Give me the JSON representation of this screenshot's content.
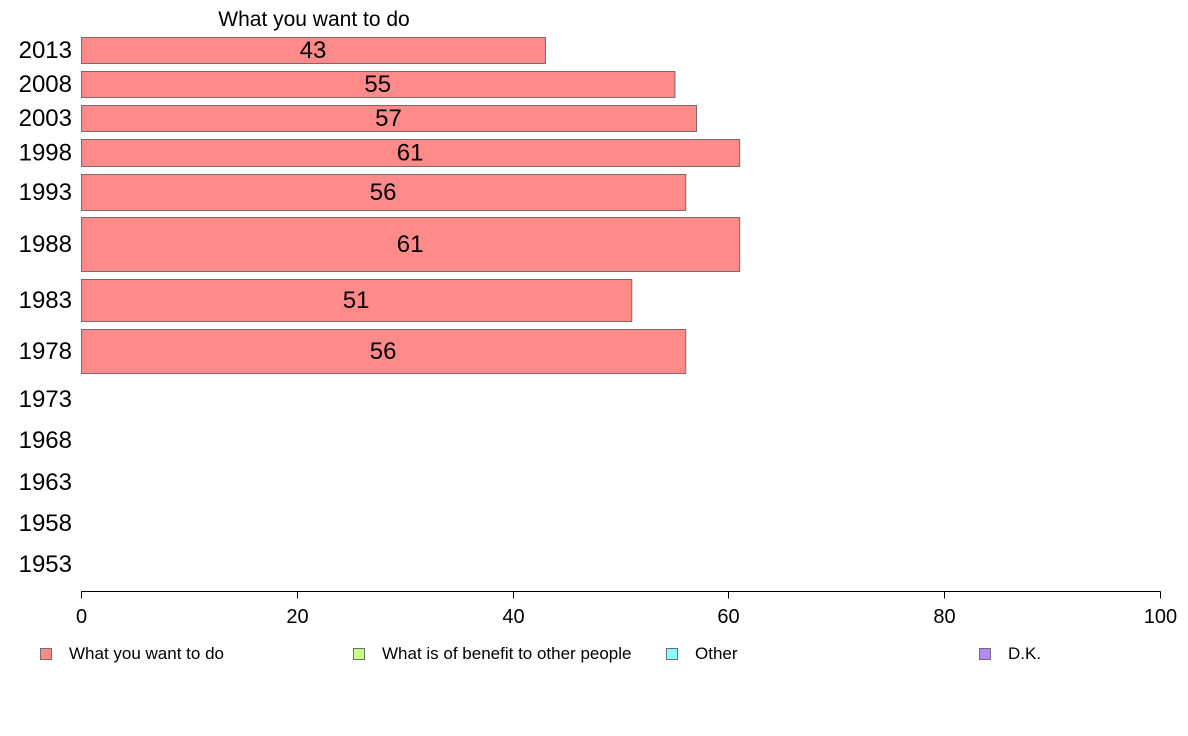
{
  "chart_data": {
    "type": "bar",
    "orientation": "horizontal",
    "title": "What you want to do",
    "categories": [
      "2013",
      "2008",
      "2003",
      "1998",
      "1993",
      "1988",
      "1983",
      "1978",
      "1973",
      "1968",
      "1963",
      "1958",
      "1953"
    ],
    "series": [
      {
        "name": "What you want to do",
        "values": [
          43,
          55,
          57,
          61,
          56,
          61,
          51,
          56,
          null,
          null,
          null,
          null,
          null
        ],
        "color": "#ff8a8a"
      }
    ],
    "data_labels": [
      "43",
      "55",
      "57",
      "61",
      "56",
      "61",
      "51",
      "56",
      "",
      "",
      "",
      "",
      ""
    ],
    "xlim": [
      0,
      100
    ],
    "xticks": [
      "0",
      "20",
      "40",
      "60",
      "80",
      "100"
    ],
    "grid": false,
    "legend_position": "bottom",
    "legend": [
      {
        "label": "What you want to do",
        "color": "#ff8a8a"
      },
      {
        "label": "What is of benefit to other people",
        "color": "#c8ff8a"
      },
      {
        "label": "Other",
        "color": "#8affff"
      },
      {
        "label": "D.K.",
        "color": "#b48aff"
      }
    ]
  }
}
